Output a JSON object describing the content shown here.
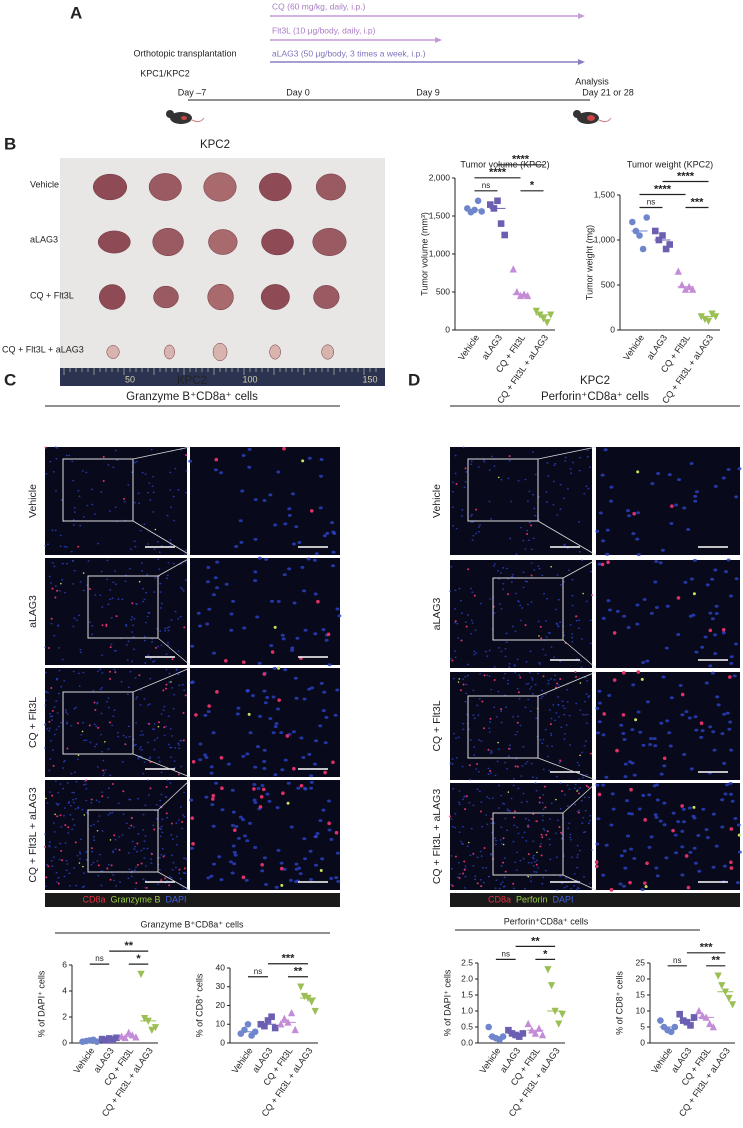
{
  "panel_a": {
    "label": "A",
    "treatments": [
      "CQ (60 mg/kg, daily, i.p.)",
      "Flt3L (10 μg/body, daily, i.p)",
      "aLAG3 (50 μg/body, 3 times a week, i.p.)"
    ],
    "transplant": "Orthotopic transplantation",
    "model": "KPC1/KPC2",
    "analysis": "Analysis",
    "days": [
      "Day –7",
      "Day 0",
      "Day 9",
      "Day 21 or 28"
    ]
  },
  "panel_b": {
    "label": "B",
    "title": "KPC2",
    "groups": [
      "Vehicle",
      "aLAG3",
      "CQ + Flt3L",
      "CQ + Flt3L + aLAG3"
    ],
    "ruler": [
      "50",
      "100",
      "150"
    ]
  },
  "panel_c": {
    "label": "C",
    "title": "KPC2",
    "subtitle": "Granzyme B⁺CD8a⁺ cells",
    "groups": [
      "Vehicle",
      "aLAG3",
      "CQ + Flt3L",
      "CQ + Flt3L + aLAG3"
    ],
    "stains": [
      "CD8a",
      "Granzyme B",
      "DAPI"
    ],
    "plots_title": "Granzyme B⁺CD8a⁺ cells"
  },
  "panel_d": {
    "label": "D",
    "title": "KPC2",
    "subtitle": "Perforin⁺CD8a⁺ cells",
    "groups": [
      "Vehicle",
      "aLAG3",
      "CQ + Flt3L",
      "CQ + Flt3L + aLAG3"
    ],
    "stains": [
      "CD8a",
      "Perforin",
      "DAPI"
    ],
    "plots_title": "Perforin⁺CD8a⁺ cells"
  },
  "chart_data": [
    {
      "type": "strip",
      "title": "Tumor volume (KPC2)",
      "ylabel": "Tumor volume (mm³)",
      "categories": [
        "Vehicle",
        "aLAG3",
        "CQ + Flt3L",
        "CQ + Flt3L + aLAG3"
      ],
      "colors": [
        "#6f86cc",
        "#6a5fb0",
        "#c48bd6",
        "#9bbf54"
      ],
      "markers": [
        "circle",
        "square",
        "triangle-up",
        "triangle-down"
      ],
      "values": [
        [
          1600,
          1550,
          1580,
          1700,
          1560
        ],
        [
          1650,
          1600,
          1700,
          1400,
          1250
        ],
        [
          800,
          500,
          450,
          470,
          450
        ],
        [
          250,
          200,
          150,
          100,
          200
        ]
      ],
      "ylim": [
        0,
        2000
      ],
      "yticks": [
        0,
        500,
        {
          "value": 1000,
          "label": "1,000"
        },
        {
          "value": 1500,
          "label": "1,500"
        },
        {
          "value": 2000,
          "label": "2,000"
        }
      ],
      "annotations": [
        {
          "label": "ns",
          "categories": [
            "Vehicle",
            "aLAG3"
          ]
        },
        {
          "label": "*",
          "categories": [
            "CQ + Flt3L",
            "CQ + Flt3L + aLAG3"
          ]
        },
        {
          "label": "****",
          "categories": [
            "Vehicle",
            "CQ + Flt3L"
          ]
        },
        {
          "label": "****",
          "categories": [
            "aLAG3",
            "CQ + Flt3L + aLAG3"
          ]
        }
      ]
    },
    {
      "type": "strip",
      "title": "Tumor weight (KPC2)",
      "ylabel": "Tumor weight (mg)",
      "categories": [
        "Vehicle",
        "aLAG3",
        "CQ + Flt3L",
        "CQ + Flt3L + aLAG3"
      ],
      "colors": [
        "#6f86cc",
        "#6a5fb0",
        "#c48bd6",
        "#9bbf54"
      ],
      "markers": [
        "circle",
        "square",
        "triangle-up",
        "triangle-down"
      ],
      "values": [
        [
          1200,
          1100,
          1050,
          900,
          1250
        ],
        [
          1100,
          1000,
          1050,
          900,
          950
        ],
        [
          650,
          500,
          450,
          480,
          450
        ],
        [
          150,
          120,
          100,
          180,
          150
        ]
      ],
      "ylim": [
        0,
        1500
      ],
      "yticks": [
        0,
        500,
        {
          "value": 1000,
          "label": "1,000"
        },
        {
          "value": 1500,
          "label": "1,500"
        }
      ],
      "annotations": [
        {
          "label": "ns",
          "categories": [
            "Vehicle",
            "aLAG3"
          ]
        },
        {
          "label": "***",
          "categories": [
            "CQ + Flt3L",
            "CQ + Flt3L + aLAG3"
          ]
        },
        {
          "label": "****",
          "categories": [
            "Vehicle",
            "CQ + Flt3L"
          ]
        },
        {
          "label": "****",
          "categories": [
            "aLAG3",
            "CQ + Flt3L + aLAG3"
          ]
        }
      ]
    },
    {
      "type": "strip",
      "ylabel": "% of DAPI⁺ cells",
      "categories": [
        "Vehicle",
        "aLAG3",
        "CQ + Flt3L",
        "CQ + Flt3L + aLAG3"
      ],
      "colors": [
        "#6f86cc",
        "#6a5fb0",
        "#c48bd6",
        "#9bbf54"
      ],
      "markers": [
        "circle",
        "square",
        "triangle-up",
        "triangle-down"
      ],
      "values": [
        [
          0.1,
          0.15,
          0.2,
          0.25,
          0.1
        ],
        [
          0.3,
          0.2,
          0.35,
          0.25,
          0.4
        ],
        [
          0.5,
          0.4,
          0.8,
          0.6,
          0.45
        ],
        [
          5.3,
          1.9,
          1.7,
          1.0,
          1.2
        ]
      ],
      "ylim": [
        0,
        6
      ],
      "yticks": [
        0,
        2,
        4,
        6
      ],
      "annotations": [
        {
          "label": "ns",
          "categories": [
            "Vehicle",
            "aLAG3"
          ]
        },
        {
          "label": "*",
          "categories": [
            "CQ + Flt3L",
            "CQ + Flt3L + aLAG3"
          ]
        },
        {
          "label": "**",
          "categories": [
            "aLAG3",
            "CQ + Flt3L + aLAG3"
          ]
        }
      ]
    },
    {
      "type": "strip",
      "ylabel": "% of CD8⁺ cells",
      "categories": [
        "Vehicle",
        "aLAG3",
        "CQ + Flt3L",
        "CQ + Flt3L + aLAG3"
      ],
      "colors": [
        "#6f86cc",
        "#6a5fb0",
        "#c48bd6",
        "#9bbf54"
      ],
      "markers": [
        "circle",
        "square",
        "triangle-up",
        "triangle-down"
      ],
      "values": [
        [
          5,
          7,
          10,
          4,
          6
        ],
        [
          10,
          9,
          12,
          14,
          8
        ],
        [
          10,
          13,
          11,
          16,
          7
        ],
        [
          30,
          25,
          24,
          22,
          17
        ]
      ],
      "ylim": [
        0,
        40
      ],
      "yticks": [
        0,
        10,
        20,
        30,
        40
      ],
      "annotations": [
        {
          "label": "ns",
          "categories": [
            "Vehicle",
            "aLAG3"
          ]
        },
        {
          "label": "**",
          "categories": [
            "CQ + Flt3L",
            "CQ + Flt3L + aLAG3"
          ]
        },
        {
          "label": "***",
          "categories": [
            "aLAG3",
            "CQ + Flt3L + aLAG3"
          ]
        }
      ]
    },
    {
      "type": "strip",
      "ylabel": "% of DAPI⁺ cells",
      "categories": [
        "Vehicle",
        "aLAG3",
        "CQ + Flt3L",
        "CQ + Flt3L + aLAG3"
      ],
      "colors": [
        "#6f86cc",
        "#6a5fb0",
        "#c48bd6",
        "#9bbf54"
      ],
      "markers": [
        "circle",
        "square",
        "triangle-up",
        "triangle-down"
      ],
      "values": [
        [
          0.5,
          0.2,
          0.15,
          0.1,
          0.2
        ],
        [
          0.4,
          0.3,
          0.25,
          0.2,
          0.3
        ],
        [
          0.6,
          0.4,
          0.3,
          0.45,
          0.25
        ],
        [
          2.3,
          1.8,
          1.0,
          0.6,
          0.9
        ]
      ],
      "ylim": [
        0,
        2.5
      ],
      "yticks": [
        {
          "value": 0,
          "label": "0.0"
        },
        0.5,
        {
          "value": 1,
          "label": "1.0"
        },
        1.5,
        {
          "value": 2,
          "label": "2.0"
        },
        2.5
      ],
      "annotations": [
        {
          "label": "ns",
          "categories": [
            "Vehicle",
            "aLAG3"
          ]
        },
        {
          "label": "*",
          "categories": [
            "CQ + Flt3L",
            "CQ + Flt3L + aLAG3"
          ]
        },
        {
          "label": "**",
          "categories": [
            "aLAG3",
            "CQ + Flt3L + aLAG3"
          ]
        }
      ]
    },
    {
      "type": "strip",
      "ylabel": "% of CD8⁺ cells",
      "categories": [
        "Vehicle",
        "aLAG3",
        "CQ + Flt3L",
        "CQ + Flt3L + aLAG3"
      ],
      "colors": [
        "#6f86cc",
        "#6a5fb0",
        "#c48bd6",
        "#9bbf54"
      ],
      "markers": [
        "circle",
        "square",
        "triangle-up",
        "triangle-down"
      ],
      "values": [
        [
          7,
          5,
          4,
          3.5,
          5
        ],
        [
          9,
          7,
          6.5,
          5.5,
          8
        ],
        [
          10,
          8.5,
          8,
          6,
          5
        ],
        [
          21,
          18,
          16,
          14,
          12
        ]
      ],
      "ylim": [
        0,
        25
      ],
      "yticks": [
        0,
        5,
        10,
        15,
        20,
        25
      ],
      "annotations": [
        {
          "label": "ns",
          "categories": [
            "Vehicle",
            "aLAG3"
          ]
        },
        {
          "label": "**",
          "categories": [
            "CQ + Flt3L",
            "CQ + Flt3L + aLAG3"
          ]
        },
        {
          "label": "***",
          "categories": [
            "aLAG3",
            "CQ + Flt3L + aLAG3"
          ]
        }
      ]
    }
  ]
}
